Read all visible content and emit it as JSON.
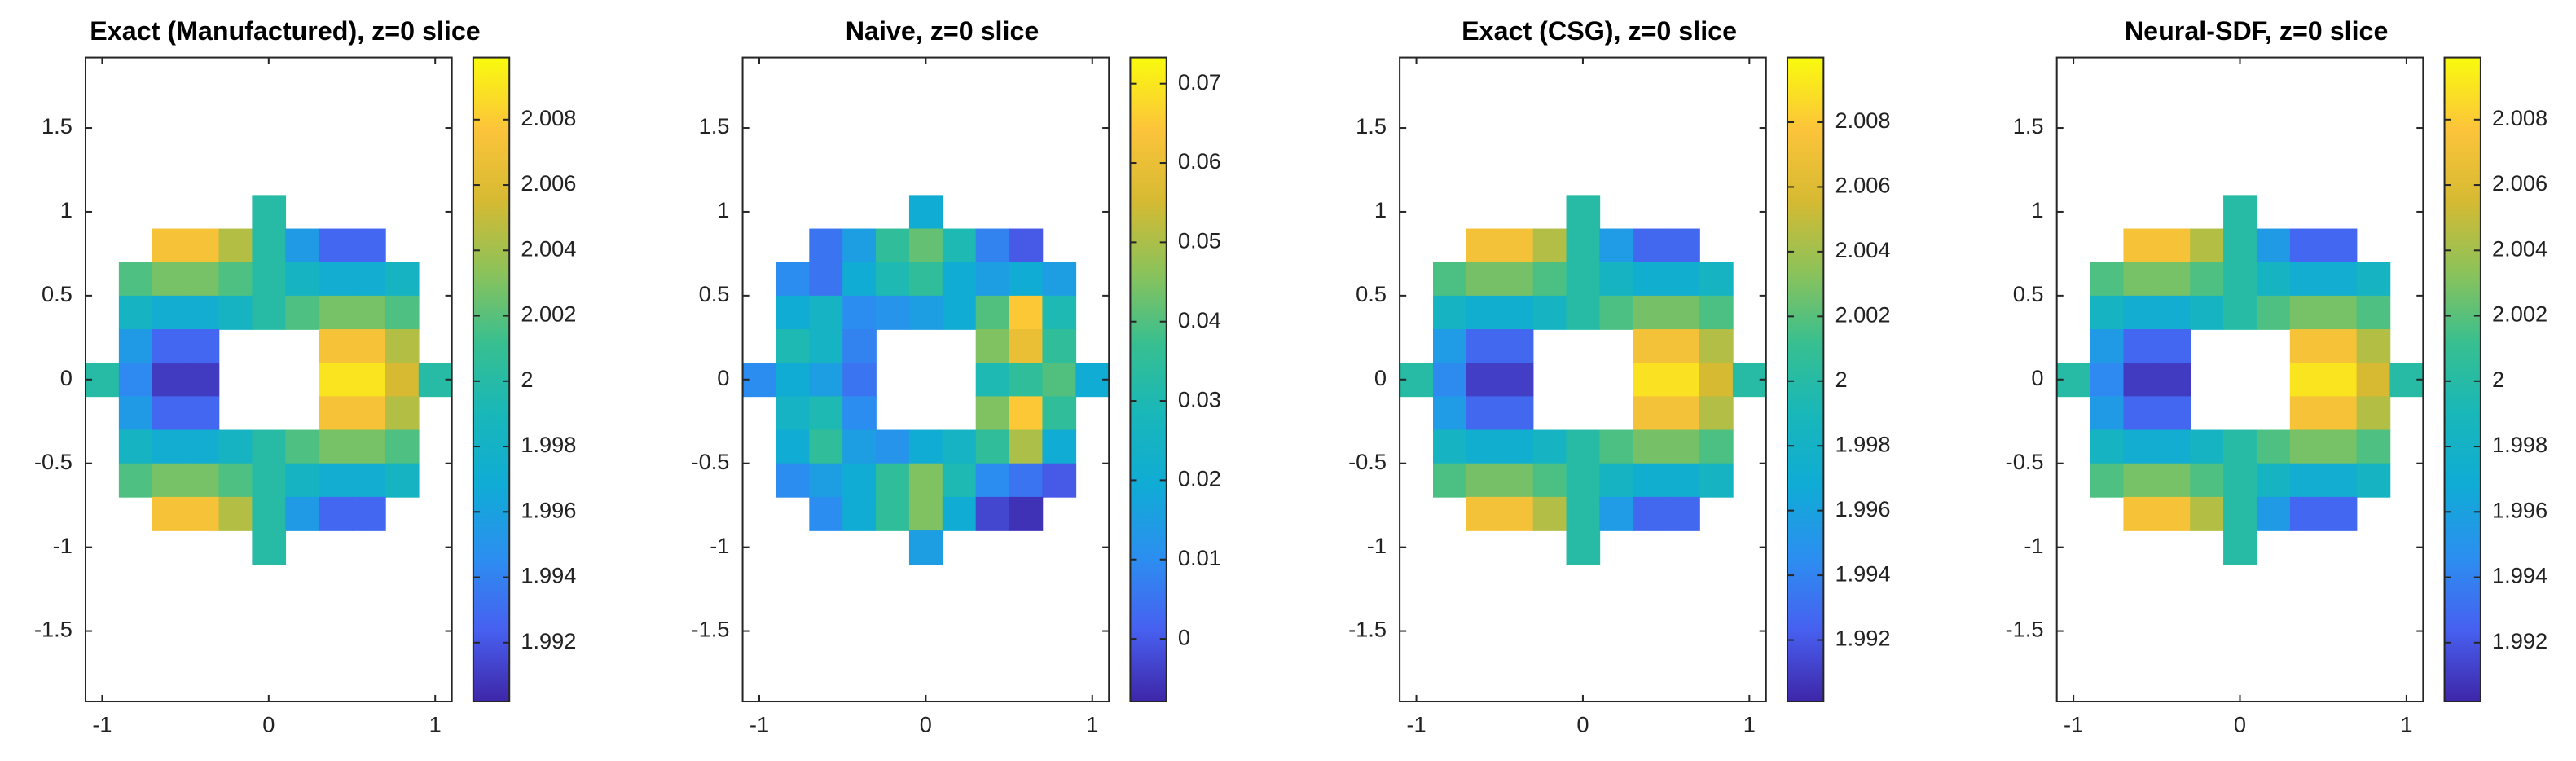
{
  "colormap": [
    "#3e26a8",
    "#4760f0",
    "#2c8ef0",
    "#10abd6",
    "#18b7ba",
    "#37bf90",
    "#8cc25a",
    "#d6ba32",
    "#fcc43a",
    "#f9fb0e"
  ],
  "chart_data": [
    {
      "type": "heatmap",
      "title": "Exact (Manufactured), z=0 slice",
      "x": [
        -1,
        -0.8,
        -0.6,
        -0.4,
        -0.2,
        0,
        0.2,
        0.4,
        0.6,
        0.8,
        1
      ],
      "y": [
        1,
        0.8,
        0.6,
        0.4,
        0.2,
        0,
        -0.2,
        -0.4,
        -0.6,
        -0.8,
        -1
      ],
      "z": [
        [
          null,
          null,
          null,
          null,
          null,
          2,
          null,
          null,
          null,
          null,
          null
        ],
        [
          null,
          null,
          2.0073,
          2.0073,
          2.0045,
          2,
          1.9955,
          1.9927,
          1.9927,
          null,
          null
        ],
        [
          null,
          2.0017,
          2.0028,
          2.0028,
          2.0017,
          2,
          1.9983,
          1.9972,
          1.9972,
          1.9983,
          null
        ],
        [
          null,
          1.9983,
          1.9972,
          1.9972,
          1.9983,
          2,
          2.0017,
          2.0028,
          2.0028,
          2.0017,
          null
        ],
        [
          null,
          1.9955,
          1.9927,
          1.9927,
          null,
          null,
          null,
          2.0073,
          2.0073,
          2.0045,
          null
        ],
        [
          2,
          1.9944,
          1.991,
          1.991,
          null,
          null,
          null,
          2.009,
          2.009,
          2.0056,
          2
        ],
        [
          null,
          1.9955,
          1.9927,
          1.9927,
          null,
          null,
          null,
          2.0073,
          2.0073,
          2.0045,
          null
        ],
        [
          null,
          1.9983,
          1.9972,
          1.9972,
          1.9983,
          2,
          2.0017,
          2.0028,
          2.0028,
          2.0017,
          null
        ],
        [
          null,
          2.0017,
          2.0028,
          2.0028,
          2.0017,
          2,
          1.9983,
          1.9972,
          1.9972,
          1.9983,
          null
        ],
        [
          null,
          null,
          2.0073,
          2.0073,
          2.0045,
          2,
          1.9955,
          1.9927,
          1.9927,
          null,
          null
        ],
        [
          null,
          null,
          null,
          null,
          null,
          2,
          null,
          null,
          null,
          null,
          null
        ]
      ],
      "xlim": [
        -1.1,
        1.1
      ],
      "ylim": [
        -1.92,
        1.92
      ],
      "xticks": [
        -1,
        0,
        1
      ],
      "yticks": [
        -1.5,
        -1,
        -0.5,
        0,
        0.5,
        1,
        1.5
      ],
      "clim": [
        1.9902,
        2.0099
      ],
      "cticks": [
        1.992,
        1.994,
        1.996,
        1.998,
        2,
        2.002,
        2.004,
        2.006,
        2.008
      ]
    },
    {
      "type": "heatmap",
      "title": "Naive, z=0 slice",
      "x": [
        -1,
        -0.8,
        -0.6,
        -0.4,
        -0.2,
        0,
        0.2,
        0.4,
        0.6,
        0.8,
        1
      ],
      "y": [
        1,
        0.8,
        0.6,
        0.4,
        0.2,
        0,
        -0.2,
        -0.4,
        -0.6,
        -0.8,
        -1
      ],
      "z": [
        [
          null,
          null,
          null,
          null,
          null,
          0.02,
          null,
          null,
          null,
          null,
          null
        ],
        [
          null,
          null,
          0.005,
          0.015,
          0.035,
          0.042,
          0.03,
          0.008,
          0,
          null,
          null
        ],
        [
          null,
          0.01,
          0.005,
          0.02,
          0.03,
          0.035,
          0.02,
          0.015,
          0.02,
          0.015,
          null
        ],
        [
          null,
          0.02,
          0.025,
          0.01,
          0.012,
          0.015,
          0.02,
          0.04,
          0.065,
          0.03,
          null
        ],
        [
          null,
          0.03,
          0.025,
          0.008,
          null,
          null,
          null,
          0.045,
          0.06,
          0.035,
          null
        ],
        [
          0.01,
          0.02,
          0.015,
          0.005,
          null,
          null,
          null,
          0.03,
          0.035,
          0.04,
          0.02
        ],
        [
          null,
          0.025,
          0.03,
          0.01,
          null,
          null,
          null,
          0.045,
          0.065,
          0.035,
          null
        ],
        [
          null,
          0.02,
          0.035,
          0.015,
          0.012,
          0.02,
          0.025,
          0.035,
          0.05,
          0.02,
          null
        ],
        [
          null,
          0.01,
          0.015,
          0.02,
          0.035,
          0.045,
          0.03,
          0.01,
          0.005,
          0,
          null
        ],
        [
          null,
          null,
          0.01,
          0.02,
          0.035,
          0.045,
          0.02,
          -0.003,
          -0.006,
          null,
          null
        ],
        [
          null,
          null,
          null,
          null,
          null,
          0.015,
          null,
          null,
          null,
          null,
          null
        ]
      ],
      "xlim": [
        -1.1,
        1.1
      ],
      "ylim": [
        -1.92,
        1.92
      ],
      "xticks": [
        -1,
        0,
        1
      ],
      "yticks": [
        -1.5,
        -1,
        -0.5,
        0,
        0.5,
        1,
        1.5
      ],
      "clim": [
        -0.0079,
        0.0733
      ],
      "cticks": [
        0,
        0.01,
        0.02,
        0.03,
        0.04,
        0.05,
        0.06,
        0.07
      ]
    },
    {
      "type": "heatmap",
      "title": "Exact (CSG), z=0 slice",
      "x": [
        -1,
        -0.8,
        -0.6,
        -0.4,
        -0.2,
        0,
        0.2,
        0.4,
        0.6,
        0.8,
        1
      ],
      "y": [
        1,
        0.8,
        0.6,
        0.4,
        0.2,
        0,
        -0.2,
        -0.4,
        -0.6,
        -0.8,
        -1
      ],
      "z": [
        [
          null,
          null,
          null,
          null,
          null,
          2,
          null,
          null,
          null,
          null,
          null
        ],
        [
          null,
          null,
          2.0073,
          2.0073,
          2.0045,
          2,
          1.9955,
          1.9927,
          1.9927,
          null,
          null
        ],
        [
          null,
          2.0017,
          2.0028,
          2.0028,
          2.0017,
          2,
          1.9983,
          1.9972,
          1.9972,
          1.9983,
          null
        ],
        [
          null,
          1.9983,
          1.9972,
          1.9972,
          1.9983,
          2,
          2.0017,
          2.0028,
          2.0028,
          2.0017,
          null
        ],
        [
          null,
          1.9955,
          1.9927,
          1.9927,
          null,
          null,
          null,
          2.0073,
          2.0073,
          2.0045,
          null
        ],
        [
          2,
          1.9944,
          1.991,
          1.991,
          null,
          null,
          null,
          2.009,
          2.009,
          2.0056,
          2
        ],
        [
          null,
          1.9955,
          1.9927,
          1.9927,
          null,
          null,
          null,
          2.0073,
          2.0073,
          2.0045,
          null
        ],
        [
          null,
          1.9983,
          1.9972,
          1.9972,
          1.9983,
          2,
          2.0017,
          2.0028,
          2.0028,
          2.0017,
          null
        ],
        [
          null,
          2.0017,
          2.0028,
          2.0028,
          2.0017,
          2,
          1.9983,
          1.9972,
          1.9972,
          1.9983,
          null
        ],
        [
          null,
          null,
          2.0073,
          2.0073,
          2.0045,
          2,
          1.9955,
          1.9927,
          1.9927,
          null,
          null
        ],
        [
          null,
          null,
          null,
          null,
          null,
          2,
          null,
          null,
          null,
          null,
          null
        ]
      ],
      "xlim": [
        -1.1,
        1.1
      ],
      "ylim": [
        -1.92,
        1.92
      ],
      "xticks": [
        -1,
        0,
        1
      ],
      "yticks": [
        -1.5,
        -1,
        -0.5,
        0,
        0.5,
        1,
        1.5
      ],
      "clim": [
        1.9901,
        2.01
      ],
      "cticks": [
        1.992,
        1.994,
        1.996,
        1.998,
        2,
        2.002,
        2.004,
        2.006,
        2.008
      ]
    },
    {
      "type": "heatmap",
      "title": "Neural-SDF, z=0 slice",
      "x": [
        -1,
        -0.8,
        -0.6,
        -0.4,
        -0.2,
        0,
        0.2,
        0.4,
        0.6,
        0.8,
        1
      ],
      "y": [
        1,
        0.8,
        0.6,
        0.4,
        0.2,
        0,
        -0.2,
        -0.4,
        -0.6,
        -0.8,
        -1
      ],
      "z": [
        [
          null,
          null,
          null,
          null,
          null,
          2,
          null,
          null,
          null,
          null,
          null
        ],
        [
          null,
          null,
          2.0073,
          2.0073,
          2.0045,
          2,
          1.9955,
          1.9927,
          1.9927,
          null,
          null
        ],
        [
          null,
          2.0017,
          2.0028,
          2.0028,
          2.0017,
          2,
          1.9983,
          1.9972,
          1.9972,
          1.9983,
          null
        ],
        [
          null,
          1.9983,
          1.9972,
          1.9972,
          1.9983,
          2,
          2.0017,
          2.0028,
          2.0028,
          2.0017,
          null
        ],
        [
          null,
          1.9955,
          1.9927,
          1.9927,
          null,
          null,
          null,
          2.0073,
          2.0073,
          2.0045,
          null
        ],
        [
          2,
          1.9944,
          1.991,
          1.991,
          null,
          null,
          null,
          2.009,
          2.009,
          2.0056,
          2
        ],
        [
          null,
          1.9955,
          1.9927,
          1.9927,
          null,
          null,
          null,
          2.0073,
          2.0073,
          2.0045,
          null
        ],
        [
          null,
          1.9983,
          1.9972,
          1.9972,
          1.9983,
          2,
          2.0017,
          2.0028,
          2.0028,
          2.0017,
          null
        ],
        [
          null,
          2.0017,
          2.0028,
          2.0028,
          2.0017,
          2,
          1.9983,
          1.9972,
          1.9972,
          1.9983,
          null
        ],
        [
          null,
          null,
          2.0073,
          2.0073,
          2.0045,
          2,
          1.9955,
          1.9927,
          1.9927,
          null,
          null
        ],
        [
          null,
          null,
          null,
          null,
          null,
          2,
          null,
          null,
          null,
          null,
          null
        ]
      ],
      "xlim": [
        -1.1,
        1.1
      ],
      "ylim": [
        -1.92,
        1.92
      ],
      "xticks": [
        -1,
        0,
        1
      ],
      "yticks": [
        -1.5,
        -1,
        -0.5,
        0,
        0.5,
        1,
        1.5
      ],
      "clim": [
        1.9902,
        2.0099
      ],
      "cticks": [
        1.992,
        1.994,
        1.996,
        1.998,
        2,
        2.002,
        2.004,
        2.006,
        2.008
      ]
    }
  ]
}
